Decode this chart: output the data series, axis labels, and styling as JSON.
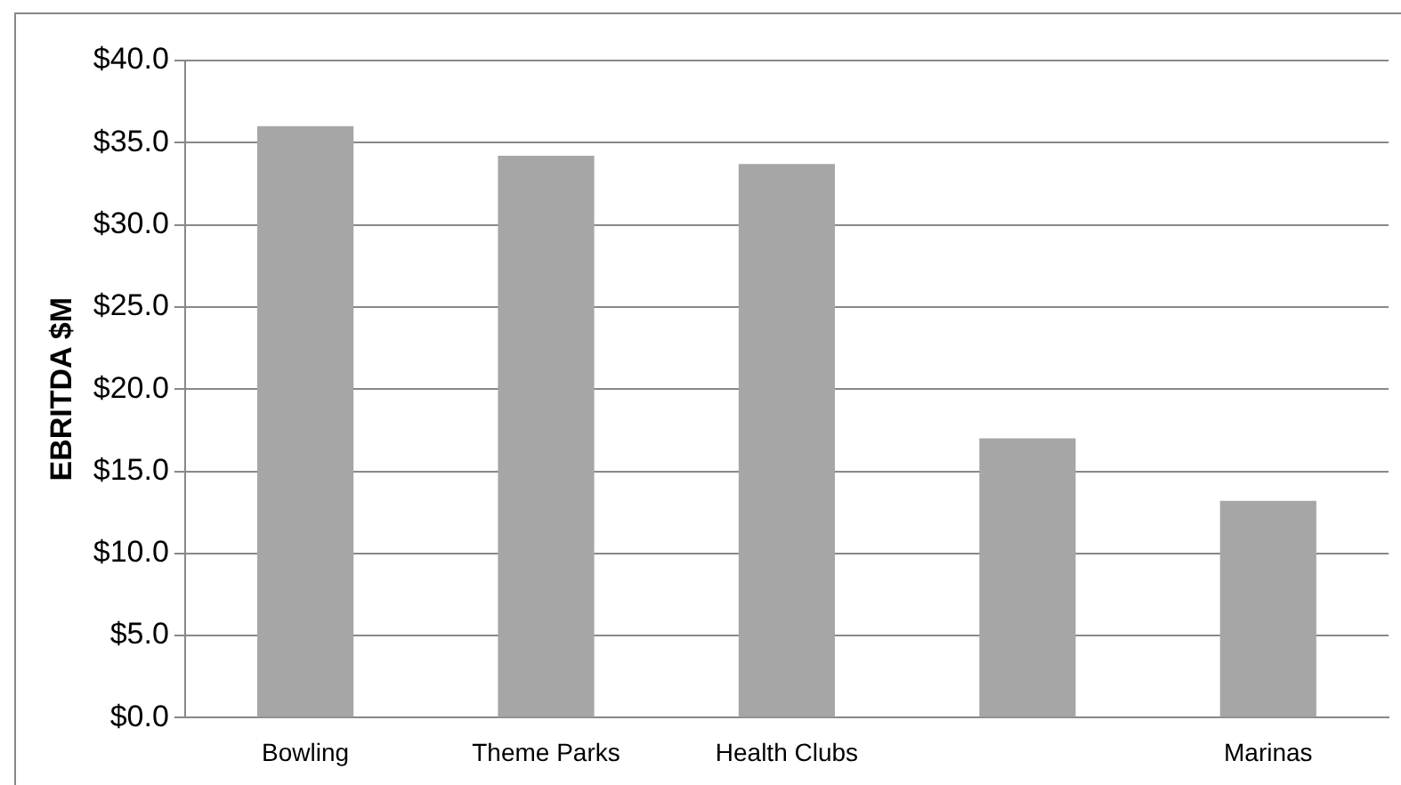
{
  "chart_data": {
    "type": "bar",
    "ylabel": "EBRITDA $M",
    "categories": [
      "Bowling",
      "Theme Parks",
      "Health Clubs",
      null,
      "Marinas"
    ],
    "values": [
      36.0,
      34.2,
      33.7,
      17.0,
      13.2
    ],
    "color": "#a6a6a6",
    "ylim": [
      0,
      40
    ],
    "yticks": [
      {
        "value": 0,
        "label": "$0.0"
      },
      {
        "value": 5,
        "label": "$5.0"
      },
      {
        "value": 10,
        "label": "$10.0"
      },
      {
        "value": 15,
        "label": "$15.0"
      },
      {
        "value": 20,
        "label": "$20.0"
      },
      {
        "value": 25,
        "label": "$25.0"
      },
      {
        "value": 30,
        "label": "$30.0"
      },
      {
        "value": 35,
        "label": "$35.0"
      },
      {
        "value": 40,
        "label": "$40.0"
      }
    ],
    "grid": "y"
  }
}
